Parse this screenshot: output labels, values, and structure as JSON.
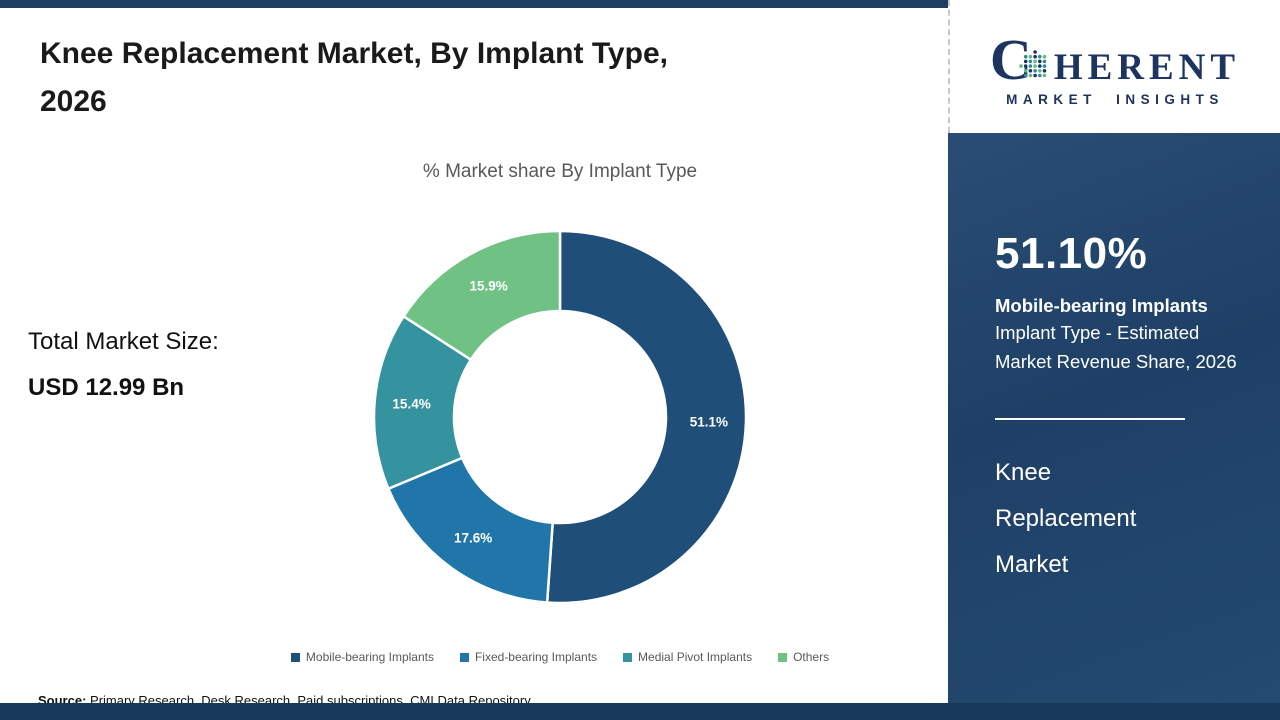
{
  "header": {
    "title_lines": [
      "Knee Replacement Market, By Implant Type,",
      "2026"
    ]
  },
  "chart_data": {
    "type": "pie",
    "donut": true,
    "title": "% Market share By Implant Type",
    "categories": [
      "Mobile-bearing Implants",
      "Fixed-bearing Implants",
      "Medial Pivot Implants",
      "Others"
    ],
    "values": [
      51.1,
      17.6,
      15.4,
      15.9
    ],
    "labels": [
      "51.1%",
      "17.6%",
      "15.4%",
      "15.9%"
    ],
    "colors": [
      "#1f4e79",
      "#2076a8",
      "#35939f",
      "#70c284"
    ],
    "legend_position": "bottom",
    "start_angle_deg": 0,
    "direction": "clockwise"
  },
  "left": {
    "total_label": "Total Market Size:",
    "total_value": "USD 12.99 Bn"
  },
  "source": {
    "label": "Source:",
    "text": " Primary Research, Desk Research, Paid subscriptions, CMI Data Repository"
  },
  "logo": {
    "c": "C",
    "rest": "HERENT",
    "sub": "MARKET INSIGHTS"
  },
  "panel": {
    "stat": "51.10%",
    "stat_bold": "Mobile-bearing Implants",
    "stat_desc": "Implant Type - Estimated Market Revenue Share, 2026",
    "market_name": "Knee Replacement Market",
    "accent_navy": "#1f4066"
  }
}
